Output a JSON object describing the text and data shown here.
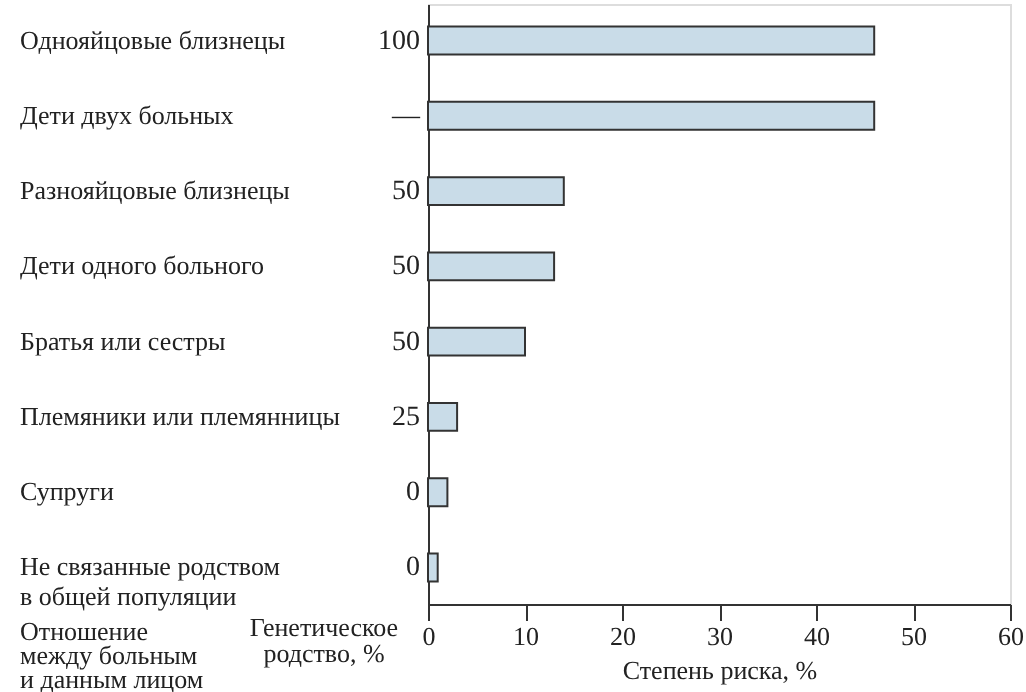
{
  "chart_data": {
    "type": "bar",
    "orientation": "horizontal",
    "categories": [
      "Однояйцовые близнецы",
      "Дети двух больных",
      "Разнояйцовые близнецы",
      "Дети одного больного",
      "Братья  или сестры",
      "Племяники или  племянницы",
      "Супруги",
      "Не связанные родством\nв общей популяции"
    ],
    "y2_categories": [
      "100",
      "—",
      "50",
      "50",
      "50",
      "25",
      "0",
      "0"
    ],
    "values": [
      46,
      46,
      14,
      13,
      10,
      3,
      2,
      1
    ],
    "color": "#c9dce8",
    "xlim": [
      0,
      60
    ],
    "xticks": [
      0,
      10,
      20,
      30,
      40,
      50,
      60
    ],
    "xlabel": "Степень риска, %",
    "ylabel": "Отношение\nмежду больным\nи данным лицом",
    "y2label": "Генетическое\nродство, %",
    "grid": false
  }
}
